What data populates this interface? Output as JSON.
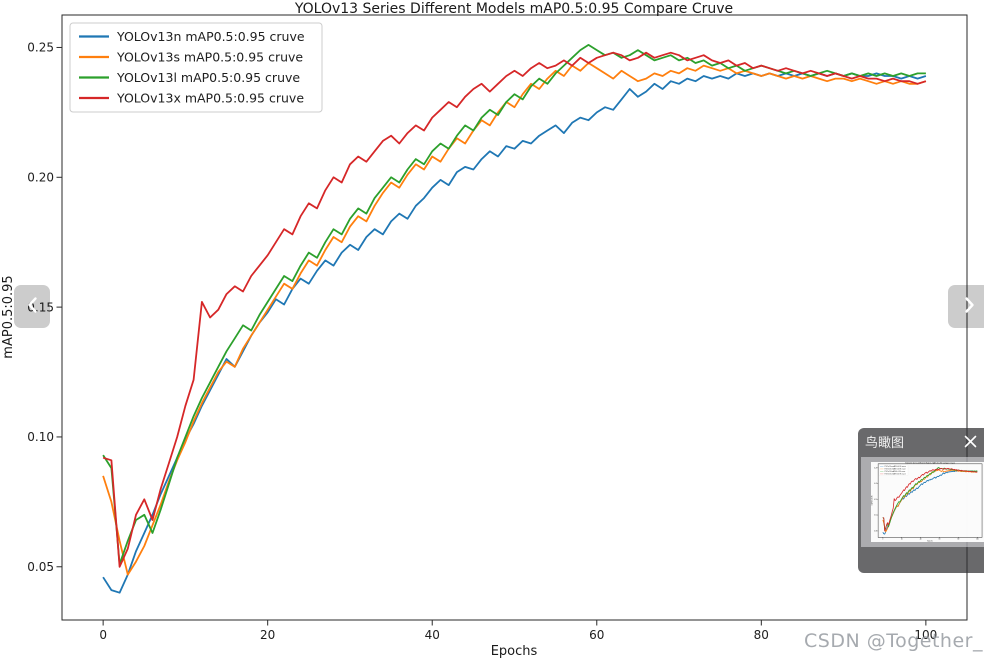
{
  "watermark": {
    "text": "CSDN @Together_CZ"
  },
  "viewer": {
    "birdview_title": "鸟瞰图",
    "icons": {
      "prev": "chevron-left",
      "next": "chevron-right",
      "close": "x"
    }
  },
  "chart_data": {
    "type": "line",
    "title": "YOLOv13 Series Different Models mAP0.5:0.95 Compare Cruve",
    "xlabel": "Epochs",
    "ylabel": "mAP0.5:0.95",
    "xlim": [
      -5,
      105
    ],
    "ylim": [
      0.0295,
      0.2625
    ],
    "xticks": [
      0,
      20,
      40,
      60,
      80,
      100
    ],
    "yticks": [
      0.05,
      0.1,
      0.15,
      0.2,
      0.25
    ],
    "grid": false,
    "legend_position": "upper-left",
    "x_description": "epochs 0..100, one point per epoch",
    "x_start": 0,
    "x_end": 100,
    "series": [
      {
        "name": "YOLOv13n mAP0.5:0.95 cruve",
        "color": "#1f77b4",
        "values": [
          0.046,
          0.041,
          0.04,
          0.047,
          0.056,
          0.063,
          0.07,
          0.078,
          0.085,
          0.092,
          0.099,
          0.105,
          0.112,
          0.118,
          0.124,
          0.13,
          0.127,
          0.133,
          0.139,
          0.144,
          0.148,
          0.153,
          0.151,
          0.157,
          0.161,
          0.159,
          0.164,
          0.168,
          0.166,
          0.171,
          0.174,
          0.172,
          0.177,
          0.18,
          0.178,
          0.183,
          0.186,
          0.184,
          0.189,
          0.192,
          0.196,
          0.199,
          0.197,
          0.202,
          0.204,
          0.203,
          0.207,
          0.21,
          0.208,
          0.212,
          0.211,
          0.214,
          0.213,
          0.216,
          0.218,
          0.22,
          0.217,
          0.221,
          0.223,
          0.222,
          0.225,
          0.227,
          0.226,
          0.23,
          0.234,
          0.231,
          0.233,
          0.236,
          0.234,
          0.237,
          0.236,
          0.238,
          0.237,
          0.239,
          0.238,
          0.239,
          0.238,
          0.24,
          0.239,
          0.24,
          0.239,
          0.24,
          0.239,
          0.24,
          0.239,
          0.24,
          0.239,
          0.24,
          0.239,
          0.24,
          0.239,
          0.24,
          0.239,
          0.239,
          0.24,
          0.239,
          0.239,
          0.238,
          0.239,
          0.238,
          0.239
        ]
      },
      {
        "name": "YOLOv13s mAP0.5:0.95 cruve",
        "color": "#ff7f0e",
        "values": [
          0.085,
          0.075,
          0.06,
          0.047,
          0.052,
          0.058,
          0.066,
          0.074,
          0.083,
          0.091,
          0.098,
          0.106,
          0.113,
          0.119,
          0.125,
          0.129,
          0.127,
          0.134,
          0.139,
          0.144,
          0.149,
          0.154,
          0.159,
          0.157,
          0.163,
          0.168,
          0.166,
          0.172,
          0.177,
          0.175,
          0.181,
          0.185,
          0.183,
          0.189,
          0.194,
          0.198,
          0.196,
          0.201,
          0.205,
          0.203,
          0.208,
          0.206,
          0.211,
          0.215,
          0.213,
          0.218,
          0.222,
          0.22,
          0.225,
          0.229,
          0.227,
          0.232,
          0.236,
          0.234,
          0.238,
          0.241,
          0.239,
          0.243,
          0.241,
          0.244,
          0.242,
          0.24,
          0.238,
          0.241,
          0.239,
          0.237,
          0.238,
          0.24,
          0.239,
          0.241,
          0.24,
          0.242,
          0.241,
          0.243,
          0.242,
          0.241,
          0.242,
          0.24,
          0.241,
          0.24,
          0.239,
          0.24,
          0.239,
          0.238,
          0.239,
          0.238,
          0.239,
          0.238,
          0.237,
          0.238,
          0.238,
          0.237,
          0.238,
          0.237,
          0.236,
          0.237,
          0.236,
          0.237,
          0.236,
          0.236,
          0.237
        ]
      },
      {
        "name": "YOLOv13l mAP0.5:0.95 cruve",
        "color": "#2ca02c",
        "values": [
          0.093,
          0.088,
          0.051,
          0.06,
          0.068,
          0.07,
          0.063,
          0.072,
          0.082,
          0.092,
          0.1,
          0.108,
          0.115,
          0.121,
          0.127,
          0.133,
          0.138,
          0.143,
          0.141,
          0.147,
          0.152,
          0.157,
          0.162,
          0.16,
          0.166,
          0.171,
          0.169,
          0.175,
          0.18,
          0.178,
          0.184,
          0.188,
          0.186,
          0.192,
          0.196,
          0.2,
          0.198,
          0.203,
          0.207,
          0.205,
          0.21,
          0.213,
          0.211,
          0.216,
          0.22,
          0.218,
          0.223,
          0.226,
          0.224,
          0.229,
          0.232,
          0.23,
          0.235,
          0.238,
          0.236,
          0.24,
          0.243,
          0.246,
          0.249,
          0.251,
          0.249,
          0.247,
          0.248,
          0.246,
          0.247,
          0.249,
          0.247,
          0.245,
          0.246,
          0.247,
          0.245,
          0.246,
          0.244,
          0.245,
          0.243,
          0.244,
          0.242,
          0.243,
          0.241,
          0.242,
          0.243,
          0.242,
          0.241,
          0.24,
          0.241,
          0.24,
          0.239,
          0.24,
          0.241,
          0.24,
          0.239,
          0.24,
          0.239,
          0.24,
          0.239,
          0.24,
          0.239,
          0.24,
          0.239,
          0.24,
          0.24
        ]
      },
      {
        "name": "YOLOv13x mAP0.5:0.95 cruve",
        "color": "#d62728",
        "values": [
          0.092,
          0.091,
          0.05,
          0.057,
          0.07,
          0.076,
          0.068,
          0.08,
          0.09,
          0.1,
          0.112,
          0.122,
          0.152,
          0.146,
          0.149,
          0.155,
          0.158,
          0.156,
          0.162,
          0.166,
          0.17,
          0.175,
          0.18,
          0.178,
          0.185,
          0.19,
          0.188,
          0.195,
          0.2,
          0.198,
          0.205,
          0.208,
          0.206,
          0.21,
          0.214,
          0.216,
          0.213,
          0.217,
          0.22,
          0.218,
          0.223,
          0.226,
          0.229,
          0.227,
          0.231,
          0.234,
          0.236,
          0.233,
          0.236,
          0.239,
          0.241,
          0.239,
          0.242,
          0.244,
          0.242,
          0.243,
          0.245,
          0.243,
          0.246,
          0.244,
          0.246,
          0.247,
          0.248,
          0.247,
          0.245,
          0.246,
          0.248,
          0.246,
          0.247,
          0.248,
          0.247,
          0.245,
          0.246,
          0.247,
          0.245,
          0.244,
          0.245,
          0.243,
          0.244,
          0.242,
          0.243,
          0.242,
          0.241,
          0.242,
          0.241,
          0.24,
          0.241,
          0.24,
          0.239,
          0.24,
          0.239,
          0.238,
          0.239,
          0.238,
          0.238,
          0.237,
          0.238,
          0.237,
          0.237,
          0.236,
          0.237
        ]
      }
    ]
  }
}
